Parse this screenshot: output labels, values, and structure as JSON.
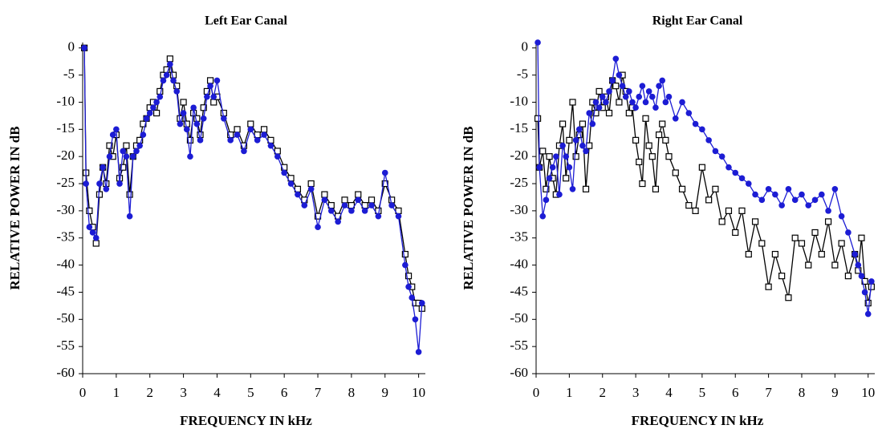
{
  "chart_data": [
    {
      "type": "line",
      "title": "Left Ear Canal",
      "x_label": "FREQUENCY IN kHz",
      "y_label": "RELATIVE POWER IN dB",
      "x": [
        0.05,
        0.1,
        0.2,
        0.3,
        0.4,
        0.5,
        0.6,
        0.7,
        0.8,
        0.9,
        1.0,
        1.1,
        1.2,
        1.3,
        1.4,
        1.5,
        1.6,
        1.7,
        1.8,
        1.9,
        2.0,
        2.1,
        2.2,
        2.3,
        2.4,
        2.5,
        2.6,
        2.7,
        2.8,
        2.9,
        3.0,
        3.1,
        3.2,
        3.3,
        3.4,
        3.5,
        3.6,
        3.7,
        3.8,
        3.9,
        4.0,
        4.2,
        4.4,
        4.6,
        4.8,
        5.0,
        5.2,
        5.4,
        5.6,
        5.8,
        6.0,
        6.2,
        6.4,
        6.6,
        6.8,
        7.0,
        7.2,
        7.4,
        7.6,
        7.8,
        8.0,
        8.2,
        8.4,
        8.6,
        8.8,
        9.0,
        9.2,
        9.4,
        9.6,
        9.7,
        9.8,
        9.9,
        10.0,
        10.1
      ],
      "series": [
        {
          "color": "#000000",
          "marker": "square",
          "values": [
            0,
            -23,
            -30,
            -33,
            -36,
            -27,
            -22,
            -25,
            -18,
            -20,
            -16,
            -24,
            -22,
            -18,
            -27,
            -20,
            -18,
            -17,
            -14,
            -13,
            -11,
            -10,
            -12,
            -8,
            -5,
            -4,
            -2,
            -5,
            -7,
            -13,
            -10,
            -14,
            -17,
            -12,
            -13,
            -16,
            -11,
            -8,
            -6,
            -10,
            -9,
            -12,
            -16,
            -15,
            -18,
            -14,
            -16,
            -15,
            -17,
            -19,
            -22,
            -24,
            -26,
            -28,
            -25,
            -31,
            -27,
            -29,
            -31,
            -28,
            -29,
            -27,
            -29,
            -28,
            -30,
            -25,
            -28,
            -30,
            -38,
            -42,
            -44,
            -47,
            -47,
            -48
          ]
        },
        {
          "color": "#1c1cd4",
          "marker": "circle",
          "values": [
            0,
            -25,
            -33,
            -34,
            -35,
            -25,
            -22,
            -26,
            -20,
            -16,
            -15,
            -25,
            -19,
            -20,
            -31,
            -20,
            -19,
            -18,
            -16,
            -13,
            -12,
            -11,
            -10,
            -9,
            -6,
            -5,
            -3,
            -6,
            -8,
            -14,
            -12,
            -15,
            -20,
            -11,
            -14,
            -17,
            -13,
            -9,
            -7,
            -9,
            -6,
            -13,
            -17,
            -16,
            -19,
            -15,
            -17,
            -16,
            -18,
            -20,
            -23,
            -25,
            -27,
            -29,
            -26,
            -33,
            -28,
            -30,
            -32,
            -29,
            -30,
            -28,
            -30,
            -29,
            -31,
            -23,
            -29,
            -31,
            -40,
            -44,
            -46,
            -50,
            -56,
            -47
          ]
        }
      ],
      "xlim": [
        0,
        10.2
      ],
      "ylim": [
        -60,
        1
      ],
      "xticks": [
        0,
        1,
        2,
        3,
        4,
        5,
        6,
        7,
        8,
        9,
        10
      ],
      "yticks": [
        -60,
        -55,
        -50,
        -45,
        -40,
        -35,
        -30,
        -25,
        -20,
        -15,
        -10,
        -5,
        0
      ]
    },
    {
      "type": "line",
      "title": "Right Ear Canal",
      "x_label": "FREQUENCY IN kHz",
      "y_label": "RELATIVE POWER IN dB",
      "x": [
        0.05,
        0.1,
        0.2,
        0.3,
        0.4,
        0.5,
        0.6,
        0.7,
        0.8,
        0.9,
        1.0,
        1.1,
        1.2,
        1.3,
        1.4,
        1.5,
        1.6,
        1.7,
        1.8,
        1.9,
        2.0,
        2.1,
        2.2,
        2.3,
        2.4,
        2.5,
        2.6,
        2.7,
        2.8,
        2.9,
        3.0,
        3.1,
        3.2,
        3.3,
        3.4,
        3.5,
        3.6,
        3.7,
        3.8,
        3.9,
        4.0,
        4.2,
        4.4,
        4.6,
        4.8,
        5.0,
        5.2,
        5.4,
        5.6,
        5.8,
        6.0,
        6.2,
        6.4,
        6.6,
        6.8,
        7.0,
        7.2,
        7.4,
        7.6,
        7.8,
        8.0,
        8.2,
        8.4,
        8.6,
        8.8,
        9.0,
        9.2,
        9.4,
        9.6,
        9.7,
        9.8,
        9.9,
        10.0,
        10.1
      ],
      "series": [
        {
          "color": "#000000",
          "marker": "square",
          "values": [
            -13,
            -22,
            -19,
            -26,
            -20,
            -24,
            -27,
            -18,
            -14,
            -24,
            -17,
            -10,
            -20,
            -16,
            -14,
            -26,
            -18,
            -10,
            -12,
            -8,
            -11,
            -9,
            -12,
            -6,
            -7,
            -10,
            -5,
            -8,
            -12,
            -11,
            -17,
            -21,
            -25,
            -13,
            -18,
            -20,
            -26,
            -16,
            -14,
            -17,
            -20,
            -23,
            -26,
            -29,
            -30,
            -22,
            -28,
            -26,
            -32,
            -30,
            -34,
            -30,
            -38,
            -32,
            -36,
            -44,
            -38,
            -42,
            -46,
            -35,
            -36,
            -40,
            -34,
            -38,
            -32,
            -40,
            -36,
            -42,
            -38,
            -41,
            -35,
            -43,
            -47,
            -44
          ]
        },
        {
          "color": "#1c1cd4",
          "marker": "circle",
          "values": [
            1,
            -22,
            -31,
            -28,
            -24,
            -22,
            -20,
            -27,
            -18,
            -20,
            -22,
            -26,
            -17,
            -15,
            -18,
            -19,
            -12,
            -14,
            -10,
            -11,
            -9,
            -10,
            -8,
            -6,
            -2,
            -5,
            -7,
            -9,
            -8,
            -10,
            -11,
            -9,
            -7,
            -10,
            -8,
            -9,
            -11,
            -7,
            -6,
            -10,
            -9,
            -13,
            -10,
            -12,
            -14,
            -15,
            -17,
            -19,
            -20,
            -22,
            -23,
            -24,
            -25,
            -27,
            -28,
            -26,
            -27,
            -29,
            -26,
            -28,
            -27,
            -29,
            -28,
            -27,
            -30,
            -26,
            -31,
            -34,
            -38,
            -40,
            -42,
            -45,
            -49,
            -43
          ]
        }
      ],
      "xlim": [
        0,
        10.2
      ],
      "ylim": [
        -60,
        1
      ],
      "xticks": [
        0,
        1,
        2,
        3,
        4,
        5,
        6,
        7,
        8,
        9,
        10
      ],
      "yticks": [
        -60,
        -55,
        -50,
        -45,
        -40,
        -35,
        -30,
        -25,
        -20,
        -15,
        -10,
        -5,
        0
      ]
    }
  ]
}
